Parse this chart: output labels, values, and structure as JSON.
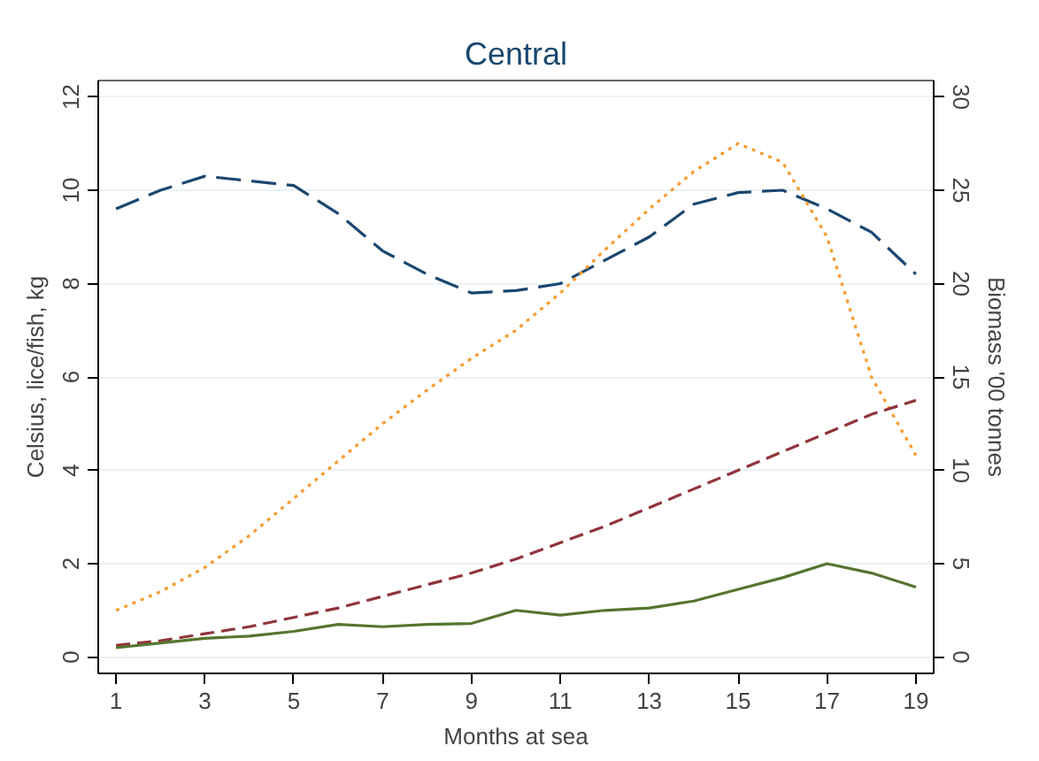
{
  "chart_data": {
    "type": "line",
    "title": "Central",
    "xlabel": "Months at sea",
    "ylabel": "Celsius, lice/fish, kg",
    "y2label": "Biomass '00 tonnes",
    "x": [
      1,
      2,
      3,
      4,
      5,
      6,
      7,
      8,
      9,
      10,
      11,
      12,
      13,
      14,
      15,
      16,
      17,
      18,
      19
    ],
    "xlim": [
      0.6,
      19.4
    ],
    "xticks": [
      1,
      3,
      5,
      7,
      9,
      11,
      13,
      15,
      17,
      19
    ],
    "ylim": [
      -0.35,
      12.35
    ],
    "yticks": [
      0,
      2,
      4,
      6,
      8,
      10,
      12
    ],
    "y2lim": [
      -0.875,
      30.875
    ],
    "y2ticks": [
      0,
      5,
      10,
      15,
      20,
      25,
      30
    ],
    "grid": "y",
    "series": [
      {
        "color": "#1a476f",
        "line_style": "longdash",
        "values": [
          9.6,
          10.0,
          10.3,
          10.2,
          10.1,
          9.5,
          8.7,
          8.2,
          7.8,
          7.85,
          8.0,
          8.5,
          9.0,
          9.7,
          9.95,
          10.0,
          9.6,
          9.1,
          8.2
        ]
      },
      {
        "color": "#f89b30",
        "line_style": "dotted",
        "axis": "y2",
        "values": [
          2.5,
          3.5,
          4.8,
          6.5,
          8.5,
          10.5,
          12.5,
          14.3,
          16,
          17.5,
          19.5,
          21.8,
          24,
          26,
          27.5,
          26.5,
          22.5,
          15,
          10.8
        ]
      },
      {
        "color": "#90353b",
        "line_style": "dashed",
        "values": [
          0.25,
          0.35,
          0.5,
          0.65,
          0.85,
          1.05,
          1.3,
          1.55,
          1.8,
          2.1,
          2.45,
          2.8,
          3.2,
          3.6,
          4.0,
          4.4,
          4.8,
          5.2,
          5.5
        ]
      },
      {
        "color": "#55752f",
        "line_style": "solid",
        "values": [
          0.2,
          0.3,
          0.4,
          0.45,
          0.55,
          0.7,
          0.65,
          0.7,
          0.72,
          1.0,
          0.9,
          1.0,
          1.05,
          1.2,
          1.45,
          1.7,
          2.0,
          1.8,
          1.5
        ]
      }
    ]
  }
}
